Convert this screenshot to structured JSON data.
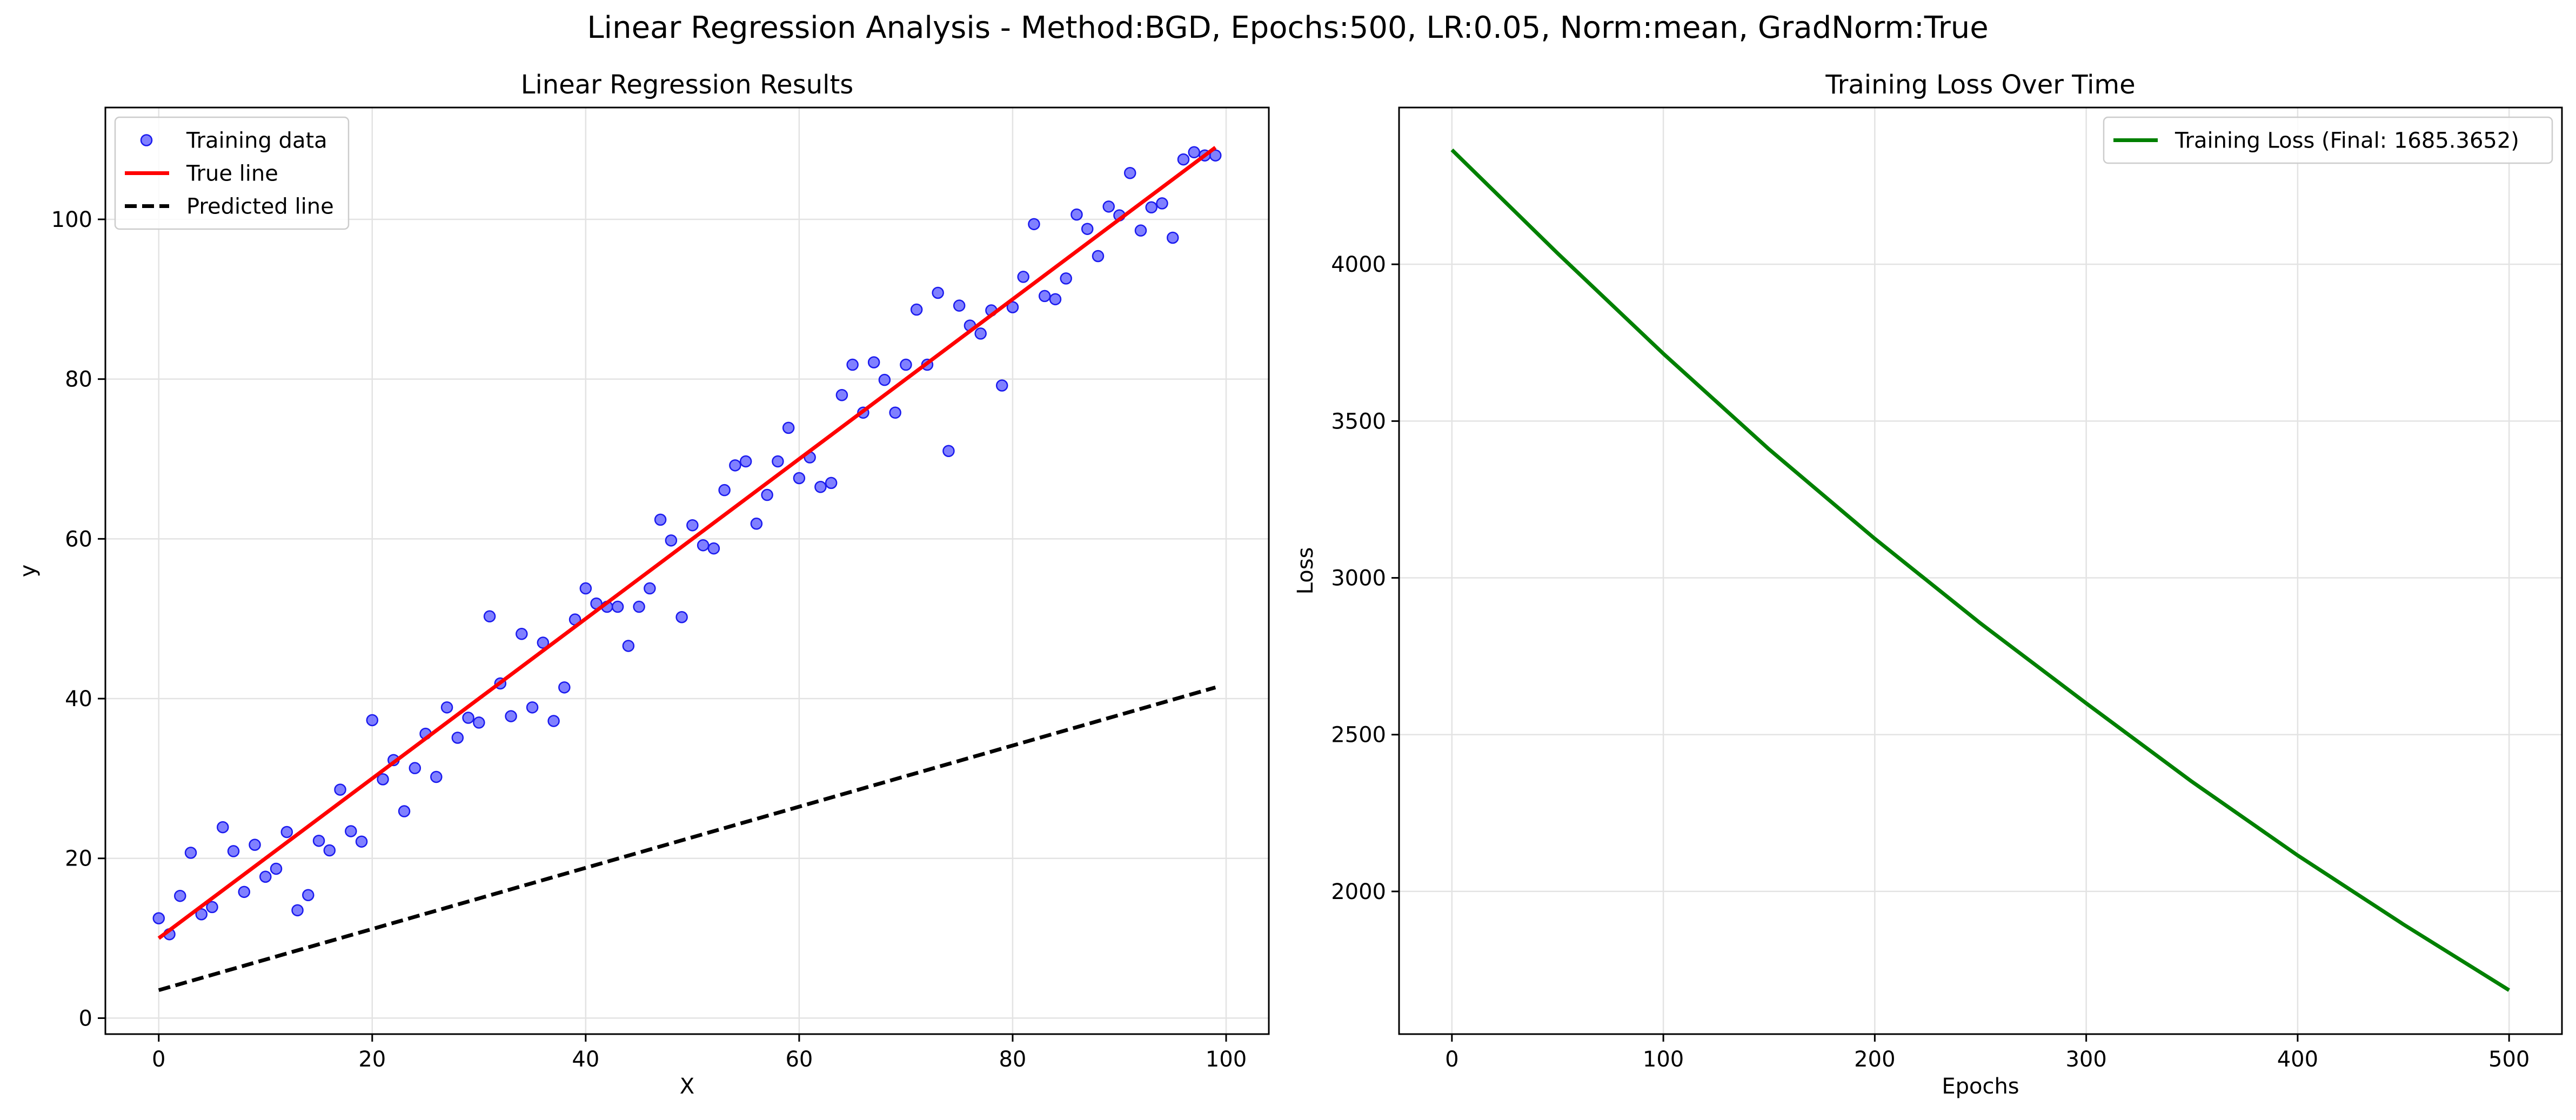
{
  "suptitle": "Linear Regression Analysis - Method:BGD, Epochs:500, LR:0.05, Norm:mean, GradNorm:True",
  "chart_data": [
    {
      "type": "scatter",
      "title": "Linear Regression Results",
      "xlabel": "X",
      "ylabel": "y",
      "xlim": [
        -5,
        104
      ],
      "ylim": [
        -2,
        114
      ],
      "xticks": [
        0,
        20,
        40,
        60,
        80,
        100
      ],
      "yticks": [
        0,
        20,
        40,
        60,
        80,
        100
      ],
      "grid": true,
      "legend_position": "upper left",
      "series": [
        {
          "name": "Training data",
          "kind": "scatter",
          "color": "#5555ff",
          "x": [
            0,
            1,
            2,
            3,
            4,
            5,
            6,
            7,
            8,
            9,
            10,
            11,
            12,
            13,
            14,
            15,
            16,
            17,
            18,
            19,
            20,
            21,
            22,
            23,
            24,
            25,
            26,
            27,
            28,
            29,
            30,
            31,
            32,
            33,
            34,
            35,
            36,
            37,
            38,
            39,
            40,
            41,
            42,
            43,
            44,
            45,
            46,
            47,
            48,
            49,
            50,
            51,
            52,
            53,
            54,
            55,
            56,
            57,
            58,
            59,
            60,
            61,
            62,
            63,
            64,
            65,
            66,
            67,
            68,
            69,
            70,
            71,
            72,
            73,
            74,
            75,
            76,
            77,
            78,
            79,
            80,
            81,
            82,
            83,
            84,
            85,
            86,
            87,
            88,
            89,
            90,
            91,
            92,
            93,
            94,
            95,
            96,
            97,
            98,
            99
          ],
          "y": [
            12.5,
            10.5,
            15.3,
            20.7,
            13.0,
            13.9,
            23.9,
            20.9,
            15.8,
            21.7,
            17.7,
            18.7,
            23.3,
            13.5,
            15.4,
            22.2,
            21.0,
            28.6,
            23.4,
            22.1,
            37.3,
            29.9,
            32.3,
            25.9,
            31.3,
            35.6,
            30.2,
            38.9,
            35.1,
            37.6,
            37.0,
            50.3,
            41.9,
            37.8,
            48.1,
            38.9,
            47.0,
            37.2,
            41.4,
            49.9,
            53.8,
            51.9,
            51.5,
            51.5,
            46.6,
            51.5,
            53.8,
            62.4,
            59.8,
            50.2,
            61.7,
            59.2,
            58.8,
            66.1,
            69.2,
            69.7,
            61.9,
            65.5,
            69.7,
            73.9,
            67.6,
            70.2,
            66.5,
            67.0,
            78.0,
            81.8,
            75.8,
            82.1,
            79.9,
            75.8,
            81.8,
            88.7,
            81.8,
            90.8,
            71.0,
            89.2,
            86.7,
            85.7,
            88.6,
            79.2,
            89.0,
            92.8,
            99.4,
            90.4,
            90.0,
            92.6,
            100.6,
            98.8,
            95.4,
            101.6,
            100.5,
            105.8,
            98.6,
            101.5,
            102.0,
            97.7,
            107.5,
            108.4,
            108.0,
            108.0
          ]
        },
        {
          "name": "True line",
          "kind": "line",
          "color": "#ff0000",
          "style": "solid",
          "x": [
            0,
            99
          ],
          "y": [
            10.0,
            109.0
          ]
        },
        {
          "name": "Predicted line",
          "kind": "line",
          "color": "#000000",
          "style": "dashed",
          "x": [
            0,
            99
          ],
          "y": [
            3.5,
            41.4
          ]
        }
      ]
    },
    {
      "type": "line",
      "title": "Training Loss Over Time",
      "xlabel": "Epochs",
      "ylabel": "Loss",
      "xlim": [
        -25,
        525
      ],
      "ylim": [
        1545,
        4500
      ],
      "xticks": [
        0,
        100,
        200,
        300,
        400,
        500
      ],
      "yticks": [
        2000,
        2500,
        3000,
        3500,
        4000
      ],
      "grid": true,
      "legend_position": "upper right",
      "series": [
        {
          "name": "Training Loss (Final: 1685.3652)",
          "color": "#008000",
          "x": [
            0,
            50,
            100,
            150,
            200,
            250,
            300,
            350,
            400,
            450,
            500
          ],
          "y": [
            4365,
            4035,
            3715,
            3410,
            3125,
            2855,
            2600,
            2350,
            2115,
            1895,
            1685
          ]
        }
      ]
    }
  ]
}
